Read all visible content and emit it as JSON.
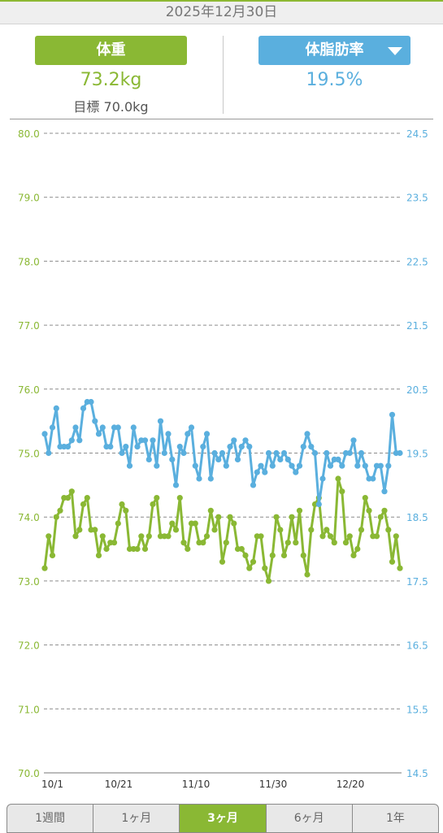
{
  "header": {
    "date": "2025年12月30日"
  },
  "summary": {
    "weight_label": "体重",
    "weight_value": "73.2kg",
    "goal_text": "目標 70.0kg",
    "fat_label": "体脂肪率",
    "fat_value": "19.5%"
  },
  "tabs": [
    {
      "label": "1週間",
      "active": false
    },
    {
      "label": "1ヶ月",
      "active": false
    },
    {
      "label": "3ヶ月",
      "active": true
    },
    {
      "label": "6ヶ月",
      "active": false
    },
    {
      "label": "1年",
      "active": false
    }
  ],
  "colors": {
    "weight": "#8ab834",
    "fat": "#5aafde",
    "grid": "#8c8c8c"
  },
  "chart_data": {
    "type": "line",
    "x_tick_labels": [
      "10/1",
      "10/21",
      "11/10",
      "11/30",
      "12/20"
    ],
    "x_ticks": [
      0,
      20,
      40,
      60,
      80
    ],
    "y_left_ticks": [
      "80.0",
      "79.0",
      "78.0",
      "77.0",
      "76.0",
      "75.0",
      "74.0",
      "73.0",
      "72.0",
      "71.0",
      "70.0"
    ],
    "y_right_ticks": [
      "24.5",
      "23.5",
      "22.5",
      "21.5",
      "20.5",
      "19.5",
      "18.5",
      "17.5",
      "16.5",
      "15.5",
      "14.5"
    ],
    "ylim_left": [
      70.0,
      80.0
    ],
    "ylim_right": [
      14.5,
      24.5
    ],
    "grid": true,
    "series": [
      {
        "axis": "left",
        "values": [
          73.2,
          73.7,
          73.4,
          74.0,
          74.1,
          74.3,
          74.3,
          74.4,
          73.7,
          73.8,
          74.2,
          74.3,
          73.8,
          73.8,
          73.4,
          73.7,
          73.5,
          73.6,
          73.6,
          73.9,
          74.2,
          74.1,
          73.5,
          73.5,
          73.5,
          73.7,
          73.5,
          73.7,
          74.2,
          74.3,
          73.7,
          73.7,
          73.7,
          73.9,
          73.8,
          74.3,
          73.6,
          73.5,
          73.9,
          73.9,
          73.6,
          73.6,
          73.7,
          74.1,
          73.8,
          74.0,
          73.3,
          73.6,
          74.0,
          73.9,
          73.5,
          73.5,
          73.4,
          73.2,
          73.3,
          73.7,
          73.7,
          73.2,
          73.0,
          73.4,
          74.0,
          73.8,
          73.4,
          73.6,
          74.0,
          73.6,
          74.1,
          73.4,
          73.1,
          73.8,
          74.2,
          74.3,
          73.7,
          73.8,
          73.7,
          73.6,
          74.6,
          74.4,
          73.6,
          73.7,
          73.4,
          73.5,
          73.8,
          74.3,
          74.1,
          73.7,
          73.7,
          74.0,
          74.1,
          73.8,
          73.3,
          73.7,
          73.2
        ]
      },
      {
        "axis": "right",
        "values": [
          19.8,
          19.5,
          19.9,
          20.2,
          19.6,
          19.6,
          19.6,
          19.7,
          19.9,
          19.7,
          20.2,
          20.3,
          20.3,
          20.0,
          19.8,
          19.9,
          19.6,
          19.6,
          19.9,
          19.9,
          19.5,
          19.6,
          19.3,
          19.9,
          19.6,
          19.7,
          19.7,
          19.4,
          19.7,
          19.3,
          20.0,
          19.5,
          19.8,
          19.4,
          19.0,
          19.6,
          19.5,
          19.8,
          19.9,
          19.3,
          19.1,
          19.6,
          19.8,
          19.1,
          19.5,
          19.4,
          19.5,
          19.3,
          19.6,
          19.7,
          19.4,
          19.6,
          19.7,
          19.6,
          19.0,
          19.2,
          19.3,
          19.2,
          19.5,
          19.3,
          19.5,
          19.4,
          19.5,
          19.4,
          19.3,
          19.2,
          19.3,
          19.6,
          19.8,
          19.6,
          19.5,
          18.7,
          19.1,
          19.5,
          19.3,
          19.4,
          19.4,
          19.3,
          19.5,
          19.5,
          19.7,
          19.3,
          19.5,
          19.3,
          19.1,
          19.1,
          19.3,
          19.3,
          18.9,
          19.3,
          20.1,
          19.5,
          19.5
        ]
      }
    ]
  }
}
